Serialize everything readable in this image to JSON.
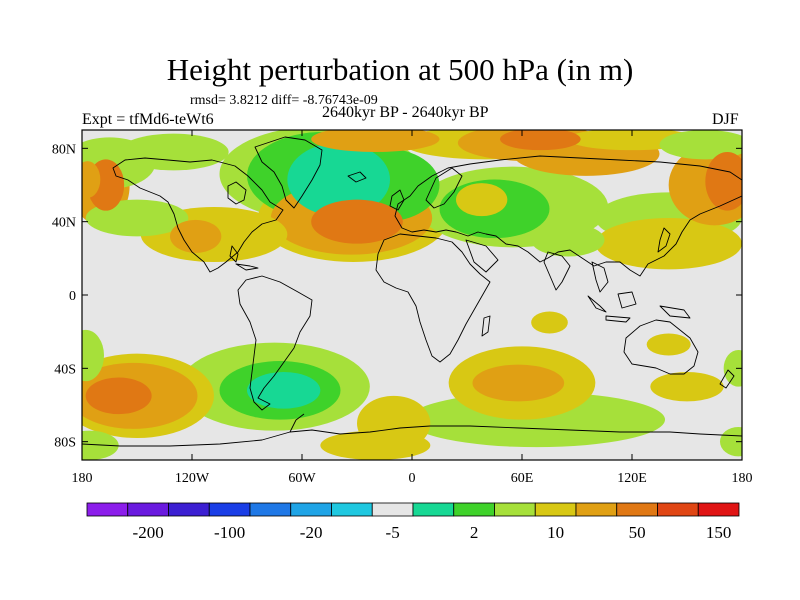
{
  "figure": {
    "title": "Height perturbation at 500 hPa (in m)",
    "stats": "rmsd= 3.8212 diff= -8.76743e-09",
    "experiment": "Expt = tfMd6-teWt6",
    "period": "2640kyr BP - 2640kyr BP",
    "season": "DJF"
  },
  "map": {
    "projection": "cylindrical equidistant",
    "lon_range": [
      -180,
      180
    ],
    "lat_range": [
      -90,
      90
    ],
    "background_color": "#e6e6e6",
    "coastline_color": "#000000",
    "x_ticks": [
      {
        "value": -180,
        "label": "180"
      },
      {
        "value": -120,
        "label": "120W"
      },
      {
        "value": -60,
        "label": "60W"
      },
      {
        "value": 0,
        "label": "0"
      },
      {
        "value": 60,
        "label": "60E"
      },
      {
        "value": 120,
        "label": "120E"
      },
      {
        "value": 180,
        "label": "180"
      }
    ],
    "y_ticks": [
      {
        "value": 80,
        "label": "80N"
      },
      {
        "value": 40,
        "label": "40N"
      },
      {
        "value": 0,
        "label": "0"
      },
      {
        "value": -40,
        "label": "40S"
      },
      {
        "value": -80,
        "label": "80S"
      }
    ],
    "regions": [
      {
        "lon": -40,
        "lat": 63,
        "rx": 28,
        "ry": 20,
        "level": 8
      },
      {
        "lon": -48,
        "lat": 65,
        "rx": 42,
        "ry": 24,
        "level": 9
      },
      {
        "lon": -50,
        "lat": 66,
        "rx": 55,
        "ry": 26,
        "level": 10
      },
      {
        "lon": -15,
        "lat": 60,
        "rx": 30,
        "ry": 20,
        "level": 9
      },
      {
        "lon": 45,
        "lat": 47,
        "rx": 30,
        "ry": 16,
        "level": 9
      },
      {
        "lon": 55,
        "lat": 48,
        "rx": 52,
        "ry": 22,
        "level": 10
      },
      {
        "lon": 140,
        "lat": 42,
        "rx": 40,
        "ry": 14,
        "level": 10
      },
      {
        "lon": 160,
        "lat": 82,
        "rx": 25,
        "ry": 8,
        "level": 10
      },
      {
        "lon": -165,
        "lat": 72,
        "rx": 25,
        "ry": 14,
        "level": 10
      },
      {
        "lon": -130,
        "lat": 78,
        "rx": 30,
        "ry": 10,
        "level": 10
      },
      {
        "lon": -150,
        "lat": 42,
        "rx": 28,
        "ry": 10,
        "level": 10
      },
      {
        "lon": -178,
        "lat": -33,
        "rx": 10,
        "ry": 14,
        "level": 10
      },
      {
        "lon": -176,
        "lat": -82,
        "rx": 16,
        "ry": 8,
        "level": 10
      },
      {
        "lon": 178,
        "lat": -40,
        "rx": 8,
        "ry": 10,
        "level": 10
      },
      {
        "lon": 178,
        "lat": -80,
        "rx": 10,
        "ry": 8,
        "level": 10
      },
      {
        "lon": -70,
        "lat": -52,
        "rx": 20,
        "ry": 10,
        "level": 8
      },
      {
        "lon": -72,
        "lat": -52,
        "rx": 33,
        "ry": 16,
        "level": 9
      },
      {
        "lon": -75,
        "lat": -50,
        "rx": 52,
        "ry": 24,
        "level": 10
      },
      {
        "lon": 68,
        "lat": -68,
        "rx": 70,
        "ry": 15,
        "level": 10
      },
      {
        "lon": 85,
        "lat": 30,
        "rx": 20,
        "ry": 9,
        "level": 10
      },
      {
        "lon": -20,
        "lat": 85,
        "rx": 35,
        "ry": 7,
        "level": 12
      },
      {
        "lon": 65,
        "lat": 83,
        "rx": 40,
        "ry": 10,
        "level": 12
      },
      {
        "lon": 70,
        "lat": 85,
        "rx": 22,
        "ry": 6,
        "level": 13
      },
      {
        "lon": 95,
        "lat": 77,
        "rx": 40,
        "ry": 12,
        "level": 12
      },
      {
        "lon": -177,
        "lat": 63,
        "rx": 7,
        "ry": 10,
        "level": 12
      },
      {
        "lon": -170,
        "lat": 60,
        "rx": 16,
        "ry": 22,
        "level": 12
      },
      {
        "lon": -167,
        "lat": 60,
        "rx": 10,
        "ry": 14,
        "level": 13
      },
      {
        "lon": 172,
        "lat": 62,
        "rx": 12,
        "ry": 16,
        "level": 13
      },
      {
        "lon": 165,
        "lat": 60,
        "rx": 25,
        "ry": 22,
        "level": 12
      },
      {
        "lon": -118,
        "lat": 32,
        "rx": 14,
        "ry": 9,
        "level": 12
      },
      {
        "lon": -108,
        "lat": 33,
        "rx": 40,
        "ry": 15,
        "level": 11
      },
      {
        "lon": -30,
        "lat": 40,
        "rx": 25,
        "ry": 12,
        "level": 13
      },
      {
        "lon": -33,
        "lat": 42,
        "rx": 44,
        "ry": 20,
        "level": 12
      },
      {
        "lon": -32,
        "lat": 42,
        "rx": 52,
        "ry": 24,
        "level": 11
      },
      {
        "lon": 140,
        "lat": 28,
        "rx": 40,
        "ry": 14,
        "level": 11
      },
      {
        "lon": -160,
        "lat": -55,
        "rx": 18,
        "ry": 10,
        "level": 13
      },
      {
        "lon": -152,
        "lat": -55,
        "rx": 35,
        "ry": 18,
        "level": 12
      },
      {
        "lon": -150,
        "lat": -55,
        "rx": 42,
        "ry": 23,
        "level": 11
      },
      {
        "lon": 58,
        "lat": -48,
        "rx": 25,
        "ry": 10,
        "level": 12
      },
      {
        "lon": 60,
        "lat": -48,
        "rx": 40,
        "ry": 20,
        "level": 11
      },
      {
        "lon": 150,
        "lat": -50,
        "rx": 20,
        "ry": 8,
        "level": 11
      },
      {
        "lon": 140,
        "lat": -27,
        "rx": 12,
        "ry": 6,
        "level": 11
      },
      {
        "lon": 75,
        "lat": -15,
        "rx": 10,
        "ry": 6,
        "level": 11
      },
      {
        "lon": -10,
        "lat": -70,
        "rx": 20,
        "ry": 15,
        "level": 11
      },
      {
        "lon": -20,
        "lat": -82,
        "rx": 30,
        "ry": 8,
        "level": 11
      },
      {
        "lon": 38,
        "lat": 52,
        "rx": 14,
        "ry": 9,
        "level": 11
      },
      {
        "lon": 40,
        "lat": 83,
        "rx": 45,
        "ry": 9,
        "level": 11
      },
      {
        "lon": 120,
        "lat": 85,
        "rx": 35,
        "ry": 6,
        "level": 11
      }
    ]
  },
  "colorbar": {
    "colors": [
      "#8c1eeb",
      "#6a1adf",
      "#3c1fd2",
      "#1a3ee6",
      "#1f78e6",
      "#1fa4e6",
      "#1fc8e0",
      "#e6e6e6",
      "#17d894",
      "#3fd22a",
      "#a6e03a",
      "#d8c814",
      "#e0a014",
      "#e07814",
      "#e04614",
      "#e01414"
    ],
    "labels": [
      "-200",
      "-100",
      "-20",
      "-5",
      "2",
      "10",
      "50",
      "150"
    ]
  }
}
